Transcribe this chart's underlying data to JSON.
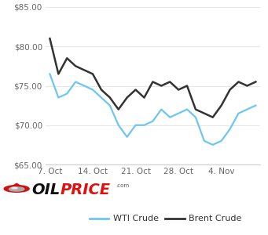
{
  "wti_x": [
    0,
    1,
    2,
    3,
    4,
    5,
    6,
    7,
    8,
    9,
    10,
    11,
    12,
    13,
    14,
    15,
    16,
    17,
    18,
    19,
    20,
    21,
    22,
    23,
    24
  ],
  "wti_y": [
    76.5,
    73.5,
    74.0,
    75.5,
    75.0,
    74.5,
    73.5,
    72.5,
    70.0,
    68.5,
    70.0,
    70.0,
    70.5,
    72.0,
    71.0,
    71.5,
    72.0,
    71.0,
    68.0,
    67.5,
    68.0,
    69.5,
    71.5,
    72.0,
    72.5
  ],
  "brent_x": [
    0,
    1,
    2,
    3,
    4,
    5,
    6,
    7,
    8,
    9,
    10,
    11,
    12,
    13,
    14,
    15,
    16,
    17,
    18,
    19,
    20,
    21,
    22,
    23,
    24
  ],
  "brent_y": [
    81.0,
    76.5,
    78.5,
    77.5,
    77.0,
    76.5,
    74.5,
    73.5,
    72.0,
    73.5,
    74.5,
    73.5,
    75.5,
    75.0,
    75.5,
    74.5,
    75.0,
    72.0,
    71.5,
    71.0,
    72.5,
    74.5,
    75.5,
    75.0,
    75.5
  ],
  "wti_color": "#6ec6f0",
  "brent_color": "#333333",
  "ylim": [
    65.0,
    85.0
  ],
  "yticks": [
    65.0,
    70.0,
    75.0,
    80.0,
    85.0
  ],
  "xtick_positions": [
    0,
    5,
    10,
    15,
    20
  ],
  "xtick_labels": [
    "7. Oct",
    "14. Oct",
    "21. Oct",
    "28. Oct",
    "4. Nov"
  ],
  "grid_color": "#e8e8e8",
  "bg_color": "#ffffff",
  "wti_label": "WTI Crude",
  "brent_label": "Brent Crude",
  "legend_fontsize": 8,
  "tick_fontsize": 7.5,
  "oil_black": "#1a1a1a",
  "oil_red": "#e02020",
  "oil_gray": "#888888"
}
